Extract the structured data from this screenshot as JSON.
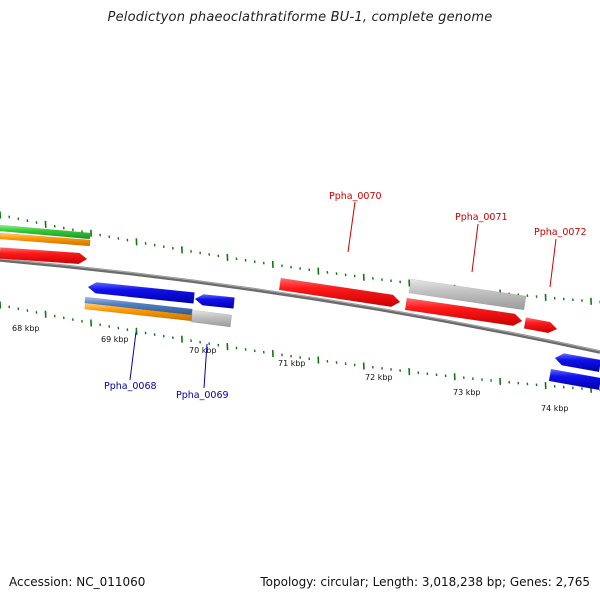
{
  "title": "Pelodictyon phaeoclathratiforme BU-1, complete genome",
  "footer": {
    "accession": "Accession: NC_011060",
    "summary": "Topology: circular; Length: 3,018,238 bp; Genes: 2,765"
  },
  "scale_labels": [
    "68 kbp",
    "69 kbp",
    "70 kbp",
    "71 kbp",
    "72 kbp",
    "73 kbp",
    "74 kbp"
  ],
  "gene_labels": [
    {
      "name": "Ppha_0068",
      "strand": "minus"
    },
    {
      "name": "Ppha_0069",
      "strand": "minus"
    },
    {
      "name": "Ppha_0070",
      "strand": "plus"
    },
    {
      "name": "Ppha_0071",
      "strand": "plus"
    },
    {
      "name": "Ppha_0072",
      "strand": "plus"
    }
  ],
  "colors": {
    "plus_label": "#cc0000",
    "minus_label": "#0000aa",
    "red": "#ff0000",
    "blue": "#0000ee",
    "gray": "#bbbbbb",
    "green": "#33cc33",
    "orange": "#ff9900",
    "steel": "#4f7fbf",
    "backbone": "#777777",
    "tick": "#117711"
  }
}
